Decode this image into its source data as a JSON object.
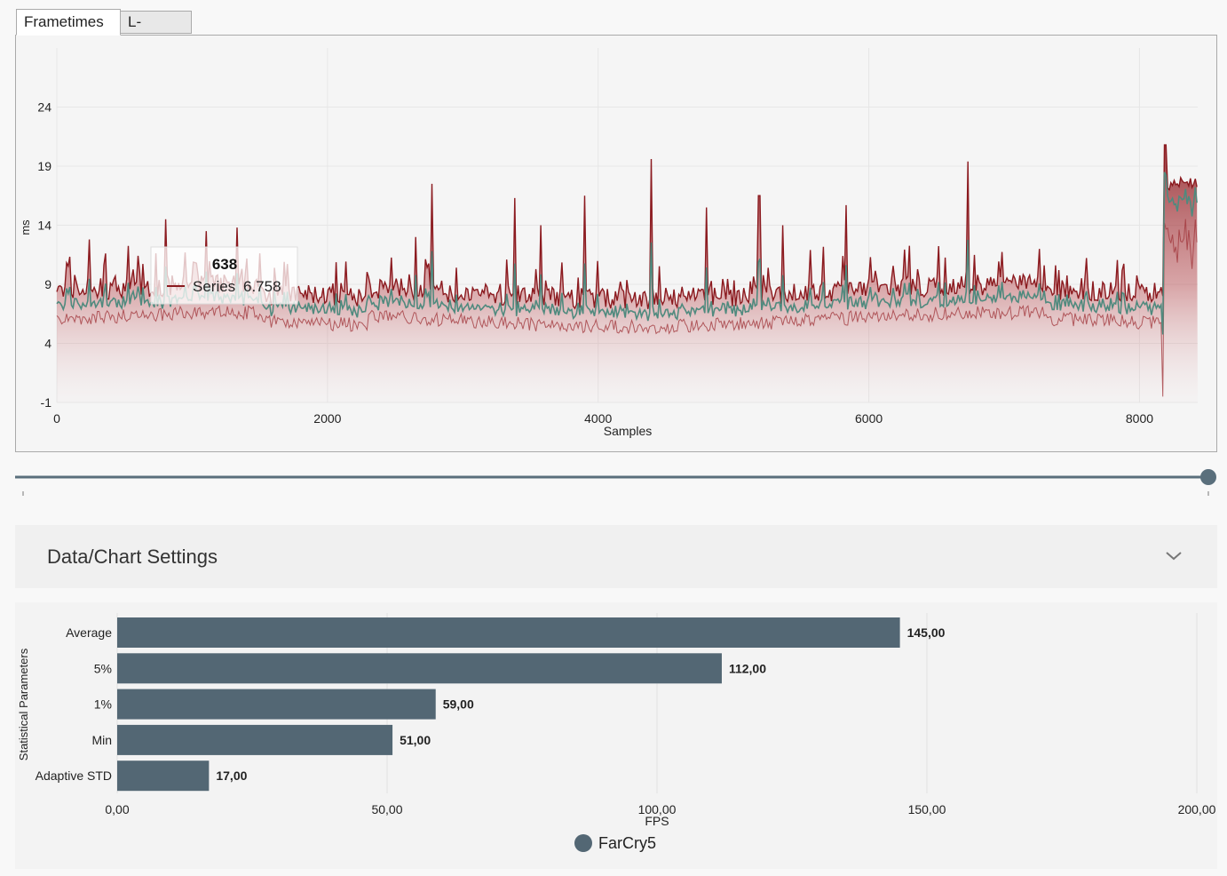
{
  "tabs": [
    {
      "label": "Frametimes",
      "active": true
    },
    {
      "label": "L-Shape",
      "active": false
    }
  ],
  "frametime_chart": {
    "type": "area",
    "ylabel": "ms",
    "xlabel": "Samples",
    "y_ticks": [
      "24",
      "19",
      "14",
      "9",
      "4",
      "-1"
    ],
    "x_ticks": [
      "0",
      "2000",
      "4000",
      "6000",
      "8000"
    ],
    "xlim": [
      0,
      8430
    ],
    "ylim": [
      -1,
      29
    ],
    "series_color": "#8b1a1f",
    "smooth_color": "#4f8a7e",
    "tooltip": {
      "title": "638",
      "series_label": "Series",
      "value": "6.758"
    }
  },
  "settings": {
    "title": "Data/Chart Settings"
  },
  "chart_data": [
    {
      "type": "area",
      "xlabel": "Samples",
      "ylabel": "ms",
      "xlim": [
        0,
        8430
      ],
      "ylim": [
        -1,
        29
      ],
      "baseline_ms": 7,
      "spikes": [
        {
          "x": 240,
          "y": 12.8
        },
        {
          "x": 800,
          "y": 14.5
        },
        {
          "x": 1100,
          "y": 13.5
        },
        {
          "x": 1330,
          "y": 13.8
        },
        {
          "x": 2650,
          "y": 13
        },
        {
          "x": 2770,
          "y": 17.5
        },
        {
          "x": 3380,
          "y": 16.3
        },
        {
          "x": 3580,
          "y": 14
        },
        {
          "x": 3900,
          "y": 16.5
        },
        {
          "x": 4390,
          "y": 19.6
        },
        {
          "x": 4800,
          "y": 15.5
        },
        {
          "x": 5190,
          "y": 16.5
        },
        {
          "x": 5360,
          "y": 14
        },
        {
          "x": 5830,
          "y": 15.7
        },
        {
          "x": 6730,
          "y": 19.4
        }
      ],
      "tail": {
        "x_start": 8170,
        "y_level": 17,
        "y_max": 20.8,
        "y_dip": -0.5
      }
    },
    {
      "type": "bar",
      "orientation": "horizontal",
      "categories": [
        "Average",
        "5%",
        "1%",
        "Min",
        "Adaptive STD"
      ],
      "values": [
        145,
        112,
        59,
        51,
        17
      ],
      "value_labels": [
        "145,00",
        "112,00",
        "59,00",
        "51,00",
        "17,00"
      ],
      "xlabel": "FPS",
      "ylabel": "Statistical Parameters",
      "x_ticks": [
        "0,00",
        "50,00",
        "100,00",
        "150,00",
        "200,00"
      ],
      "xlim": [
        0,
        200
      ],
      "legend": "FarCry5",
      "color": "#536774"
    }
  ]
}
